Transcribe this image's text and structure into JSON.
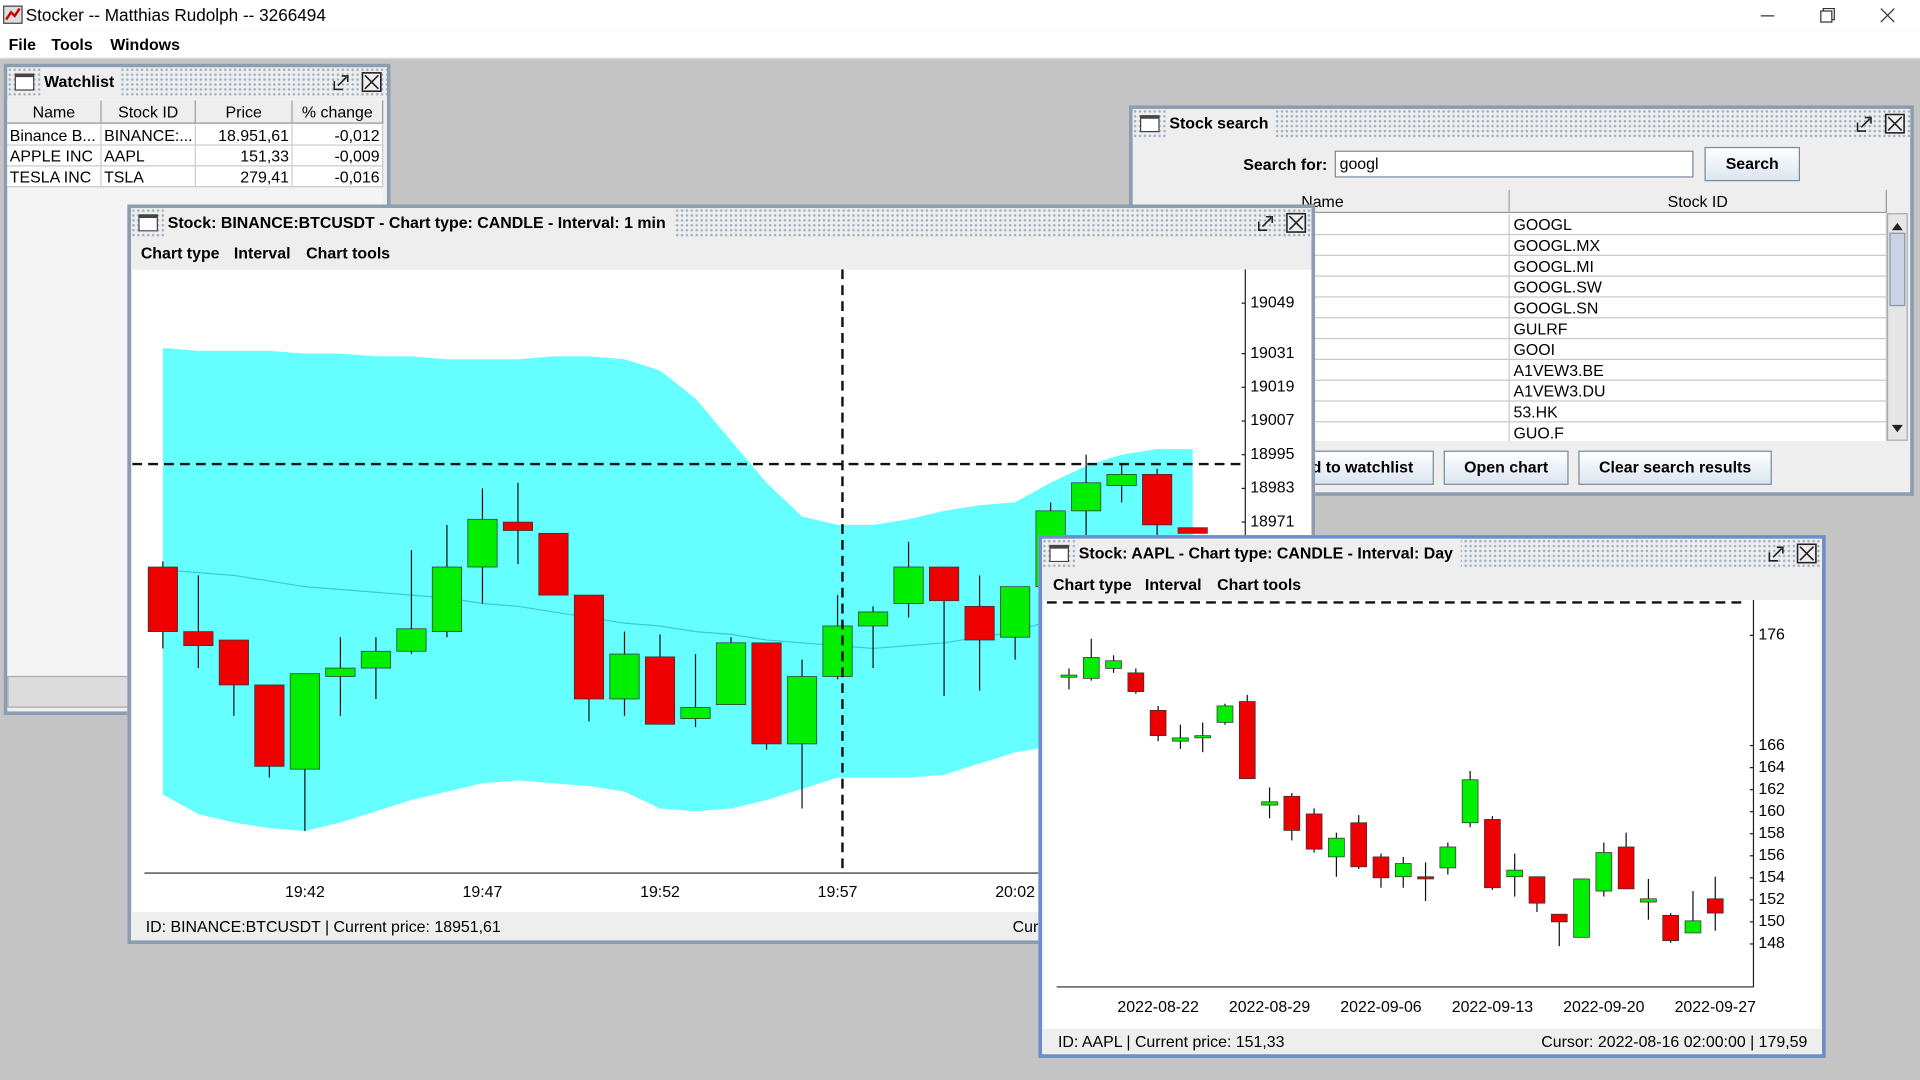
{
  "app": {
    "title": "Stocker -- Matthias Rudolph -- 3266494",
    "menu": [
      "File",
      "Tools",
      "Windows"
    ]
  },
  "watchlist": {
    "title": "Watchlist",
    "columns": [
      "Name",
      "Stock ID",
      "Price",
      "% change"
    ],
    "rows": [
      [
        "Binance B...",
        "BINANCE:...",
        "18.951,61",
        "-0,012"
      ],
      [
        "APPLE INC",
        "AAPL",
        "151,33",
        "-0,009"
      ],
      [
        "TESLA INC",
        "TSLA",
        "279,41",
        "-0,016"
      ]
    ]
  },
  "stock_search": {
    "title": "Stock search",
    "search_label": "Search for:",
    "query": "googl",
    "search_button": "Search",
    "columns": [
      "Name",
      "Stock ID"
    ],
    "results": [
      "GOOGL",
      "GOOGL.MX",
      "GOOGL.MI",
      "GOOGL.SW",
      "GOOGL.SN",
      "GULRF",
      "GOOI",
      "A1VEW3.BE",
      "A1VEW3.DU",
      "53.HK",
      "GUO.F"
    ],
    "buttons": [
      "Add to watchlist",
      "Open chart",
      "Clear search results"
    ]
  },
  "btc_window": {
    "title": "Stock: BINANCE:BTCUSDT - Chart type: CANDLE - Interval: 1 min",
    "menu": [
      "Chart type",
      "Interval",
      "Chart tools"
    ],
    "status": "ID: BINANCE:BTCUSDT | Current price: 18951,61",
    "cursor": "Cursor:",
    "chart_data": {
      "type": "candlestick",
      "categories": [
        null,
        null,
        null,
        null,
        "19:42",
        null,
        null,
        null,
        null,
        "19:47",
        null,
        null,
        null,
        null,
        "19:52",
        null,
        null,
        null,
        null,
        "19:57",
        null,
        null,
        null,
        null,
        "20:02",
        null,
        null,
        null,
        null,
        null
      ],
      "open": [
        18955,
        18932,
        18929,
        18913,
        18883,
        18916,
        18919,
        18925,
        18932,
        18955,
        18971,
        18967,
        18945,
        18908,
        18923,
        18901,
        18906,
        18928,
        18892,
        18916,
        18934,
        18942,
        18955,
        18941,
        18930,
        18948,
        18975,
        18984,
        18988,
        18969
      ],
      "high": [
        18957,
        18952,
        18929,
        18913,
        18917,
        18930,
        18930,
        18961,
        18970,
        18983,
        18985,
        18967,
        18945,
        18932,
        18931,
        18924,
        18930,
        18928,
        18922,
        18945,
        18941,
        18964,
        18955,
        18952,
        18948,
        18978,
        18995,
        18992,
        18990,
        18969
      ],
      "low": [
        18926,
        18919,
        18902,
        18880,
        18861,
        18902,
        18908,
        18924,
        18930,
        18942,
        18956,
        18945,
        18900,
        18902,
        18899,
        18898,
        18906,
        18890,
        18869,
        18915,
        18919,
        18937,
        18909,
        18911,
        18922,
        18948,
        18965,
        18978,
        18965,
        18967
      ],
      "close": [
        18932,
        18927,
        18913,
        18884,
        18917,
        18919,
        18925,
        18933,
        18955,
        18972,
        18968,
        18945,
        18908,
        18924,
        18899,
        18905,
        18928,
        18892,
        18916,
        18934,
        18939,
        18955,
        18943,
        18929,
        18948,
        18975,
        18985,
        18988,
        18970,
        18967
      ],
      "up_color": "#00ee00",
      "down_color": "#ee0000",
      "bollinger": {
        "color": "#66ffff",
        "middle_color": "#3cc8dc",
        "upper": [
          19033,
          19032,
          19032,
          19032,
          19031,
          19031,
          19030,
          19030,
          19029,
          19029,
          19029,
          19030,
          19030,
          19029,
          19025,
          19015,
          19000,
          18985,
          18973,
          18970,
          18970,
          18972,
          18975,
          18977,
          18978,
          18985,
          18991,
          18995,
          18997,
          18997
        ],
        "middle": [
          18954,
          18953,
          18952,
          18950,
          18948,
          18947,
          18946,
          18945,
          18944,
          18942,
          18941,
          18939,
          18937,
          18935,
          18934,
          18932,
          18931,
          18929,
          18928,
          18927,
          18926,
          18927,
          18928,
          18930,
          18932,
          18936,
          18941,
          18944,
          18946,
          18948
        ],
        "lower": [
          18874,
          18867,
          18864,
          18862,
          18861,
          18864,
          18868,
          18872,
          18875,
          18878,
          18879,
          18878,
          18877,
          18875,
          18869,
          18868,
          18869,
          18872,
          18876,
          18880,
          18880,
          18880,
          18881,
          18885,
          18889,
          18891,
          18891,
          18891,
          18891,
          18891
        ]
      },
      "ylim": [
        18846,
        19061
      ],
      "yticks": [
        19049,
        19031,
        19019,
        19007,
        18995,
        18983,
        18971
      ]
    }
  },
  "aapl_window": {
    "title": "Stock: AAPL - Chart type: CANDLE - Interval: Day",
    "menu": [
      "Chart type",
      "Interval",
      "Chart tools"
    ],
    "status": "ID: AAPL | Current price: 151,33",
    "cursor": "Cursor: 2022-08-16 02:00:00 | 179,59",
    "chart_data": {
      "type": "candlestick",
      "categories": [
        null,
        null,
        null,
        null,
        "2022-08-22",
        null,
        null,
        null,
        null,
        "2022-08-29",
        null,
        null,
        null,
        null,
        "2022-09-06",
        null,
        null,
        null,
        null,
        "2022-09-13",
        null,
        null,
        null,
        null,
        "2022-09-20",
        null,
        null,
        null,
        null,
        "2022-09-27"
      ],
      "open": [
        172.2,
        172.1,
        173.0,
        172.6,
        169.2,
        166.4,
        166.7,
        168.1,
        170.0,
        160.6,
        161.4,
        159.8,
        155.9,
        159.0,
        155.9,
        154.1,
        154.1,
        154.9,
        159.0,
        159.3,
        154.1,
        154.1,
        150.7,
        148.6,
        152.8,
        156.8,
        151.8,
        150.6,
        149.0,
        152.1
      ],
      "high": [
        173.0,
        175.7,
        174.2,
        173.0,
        169.6,
        167.9,
        168.1,
        169.8,
        170.6,
        162.2,
        161.7,
        160.3,
        158.1,
        159.7,
        156.2,
        155.9,
        155.4,
        157.2,
        163.7,
        159.6,
        156.2,
        154.1,
        150.7,
        153.9,
        157.2,
        158.1,
        153.9,
        150.8,
        152.8,
        154.1
      ],
      "low": [
        171.1,
        171.9,
        172.6,
        170.7,
        166.4,
        165.7,
        165.4,
        167.9,
        163.0,
        159.4,
        157.4,
        156.3,
        154.1,
        154.8,
        153.1,
        153.1,
        151.9,
        154.3,
        158.6,
        152.9,
        152.3,
        150.9,
        147.8,
        148.6,
        152.3,
        153.0,
        150.2,
        148.1,
        149.0,
        149.2
      ],
      "close": [
        172.4,
        174.0,
        173.7,
        170.9,
        166.9,
        166.7,
        166.9,
        169.6,
        163.0,
        160.9,
        158.3,
        156.6,
        157.6,
        155.0,
        154.0,
        155.3,
        153.9,
        156.8,
        162.9,
        153.1,
        154.7,
        151.7,
        150.0,
        153.9,
        156.3,
        153.0,
        152.1,
        148.3,
        150.1,
        150.8
      ],
      "up_color": "#00ee00",
      "down_color": "#ee0000",
      "ylim": [
        144.1,
        178.1
      ],
      "yticks": [
        176,
        166,
        164,
        162,
        160,
        158,
        156,
        154,
        152,
        150,
        148
      ]
    }
  }
}
